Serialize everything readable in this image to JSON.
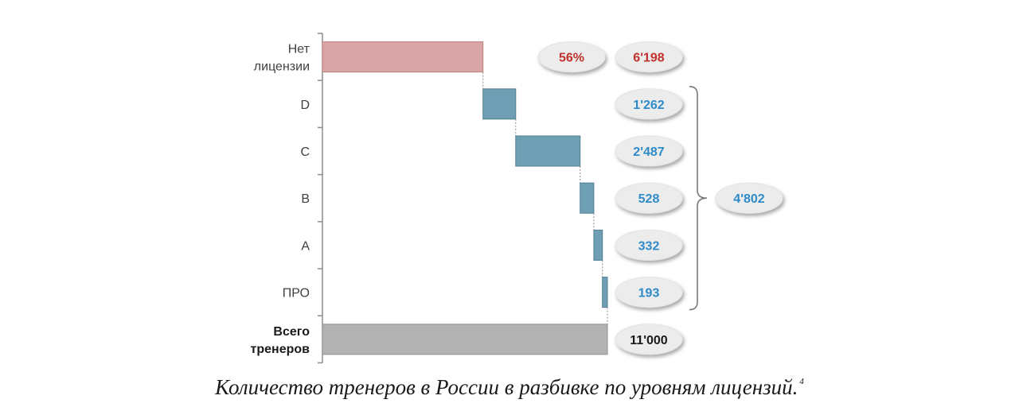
{
  "caption": {
    "text": "Количество тренеров в России в разбивке по уровням лицензий.",
    "footnote": "4"
  },
  "colors": {
    "unlicensed": "#d9a5a6",
    "unlicensed_stroke": "#c07f80",
    "license": "#6f9fb4",
    "license_stroke": "#527f93",
    "total": "#b3b3b3",
    "total_stroke": "#909090",
    "red_text": "#c0302c",
    "blue_text": "#2e8bc9",
    "dark_text": "#1a1a1a",
    "bubble_fill": "#ececec",
    "axis": "#8c8c8c"
  },
  "chart_data": {
    "type": "bar",
    "subtype": "waterfall",
    "orientation": "horizontal",
    "title": "",
    "xlabel": "",
    "ylabel": "",
    "xlim": [
      0,
      11000
    ],
    "grid": false,
    "categories": [
      {
        "label_lines": [
          "Нет",
          "лицензии"
        ],
        "value": 6198,
        "value_label": "6'198",
        "percent_label": "56%",
        "kind": "unlicensed"
      },
      {
        "label_lines": [
          "D"
        ],
        "value": 1262,
        "value_label": "1'262",
        "kind": "license"
      },
      {
        "label_lines": [
          "C"
        ],
        "value": 2487,
        "value_label": "2'487",
        "kind": "license"
      },
      {
        "label_lines": [
          "B"
        ],
        "value": 528,
        "value_label": "528",
        "kind": "license"
      },
      {
        "label_lines": [
          "A"
        ],
        "value": 332,
        "value_label": "332",
        "kind": "license"
      },
      {
        "label_lines": [
          "ПРО"
        ],
        "value": 193,
        "value_label": "193",
        "kind": "license"
      },
      {
        "label_lines": [
          "Всего",
          "тренеров"
        ],
        "value": 11000,
        "value_label": "11'000",
        "kind": "total"
      }
    ],
    "licensed_total": {
      "value": 4802,
      "value_label": "4'802"
    }
  }
}
